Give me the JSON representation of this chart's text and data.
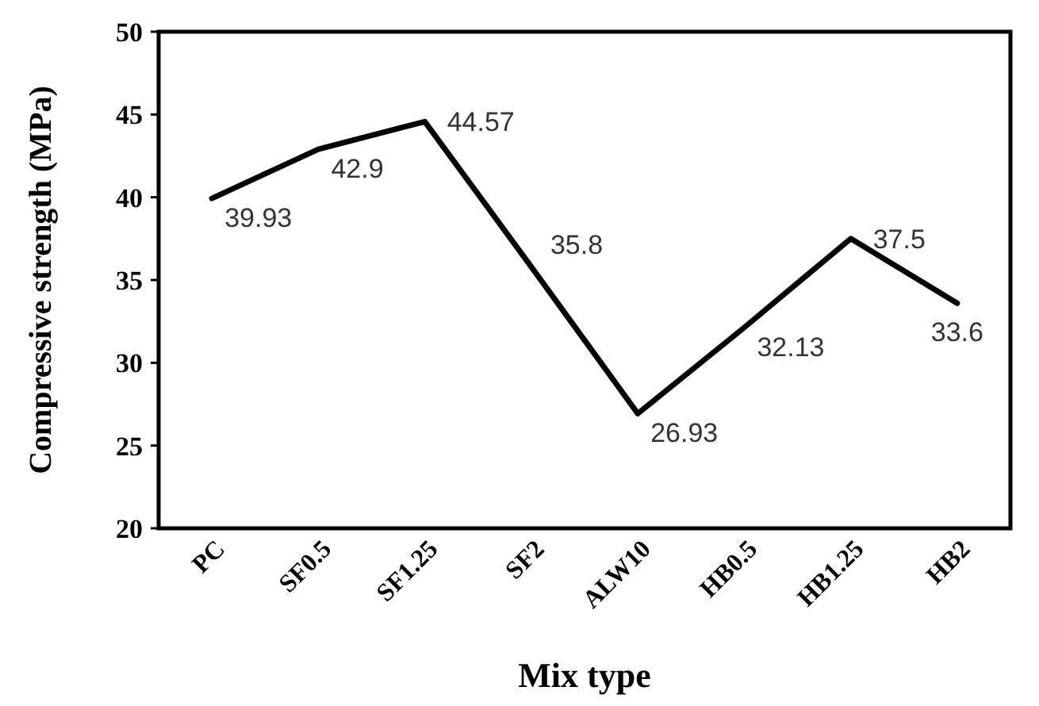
{
  "chart_data": {
    "type": "line",
    "xlabel": "Mix type",
    "ylabel": "Compressive strength (MPa)",
    "categories": [
      "PC",
      "SF0.5",
      "SF1.25",
      "SF2",
      "ALW10",
      "HB0.5",
      "HB1.25",
      "HB2"
    ],
    "series": [
      {
        "color": "#000000",
        "values": [
          39.93,
          42.9,
          44.57,
          35.8,
          26.93,
          32.13,
          37.5,
          33.6
        ]
      }
    ],
    "ylim": [
      20,
      50
    ],
    "yticks": [
      20,
      25,
      30,
      35,
      40,
      45,
      50
    ],
    "marker": "none",
    "line_style": "solid",
    "data_labels": true
  }
}
